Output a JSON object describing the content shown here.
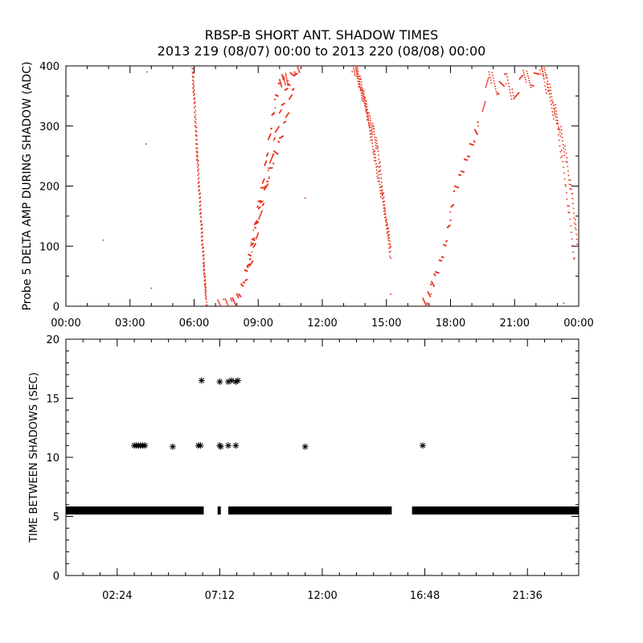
{
  "chart_data": [
    {
      "type": "scatter",
      "title": "RBSP-B SHORT ANT. SHADOW TIMES",
      "subtitle": "2013 219 (08/07) 00:00 to 2013 220 (08/08) 00:00",
      "xlabel": "",
      "ylabel": "Probe 5 DELTA AMP DURING SHADOW (ADC)",
      "xlim": [
        "00:00",
        "24:00"
      ],
      "ylim": [
        0,
        400
      ],
      "x_tick_labels": [
        "00:00",
        "03:00",
        "06:00",
        "09:00",
        "12:00",
        "15:00",
        "18:00",
        "21:00",
        "00:00"
      ],
      "y_tick_labels": [
        "0",
        "100",
        "200",
        "300",
        "400"
      ],
      "grid": false,
      "marker_color": "#e8301a",
      "traces": [
        {
          "x": [
            5.9,
            6.0,
            6.1,
            6.2,
            6.3,
            6.4,
            6.5,
            6.6
          ],
          "y": [
            400,
            340,
            270,
            210,
            150,
            90,
            35,
            2
          ]
        },
        {
          "x": [
            5.95,
            6.05,
            6.15,
            6.25,
            6.35,
            6.45,
            6.55
          ],
          "y": [
            395,
            330,
            265,
            200,
            140,
            80,
            25
          ]
        },
        {
          "x": [
            7.0,
            7.4,
            7.8,
            8.1,
            8.3,
            8.5,
            8.7,
            8.9,
            9.1,
            9.4,
            9.7,
            10.0,
            10.3,
            10.6,
            10.85
          ],
          "y": [
            0,
            2,
            4,
            15,
            40,
            70,
            100,
            130,
            170,
            210,
            245,
            270,
            310,
            360,
            400
          ]
        },
        {
          "x": [
            8.4,
            8.6,
            8.8,
            9.0,
            9.2,
            9.4,
            9.6,
            9.8,
            10.0,
            10.2,
            10.4
          ],
          "y": [
            40,
            80,
            120,
            165,
            200,
            250,
            300,
            340,
            370,
            380,
            375
          ]
        },
        {
          "x": [
            8.6,
            8.9,
            9.2,
            9.5,
            9.8,
            10.1,
            10.4,
            10.7,
            11.0
          ],
          "y": [
            60,
            110,
            170,
            220,
            280,
            330,
            370,
            395,
            400
          ]
        },
        {
          "x": [
            13.4,
            13.6,
            13.8,
            14.0,
            14.2,
            14.4,
            14.6,
            14.8,
            15.0,
            15.2
          ],
          "y": [
            400,
            390,
            360,
            340,
            310,
            290,
            260,
            200,
            140,
            80
          ]
        },
        {
          "x": [
            13.6,
            13.8,
            14.0,
            14.2,
            14.4,
            14.6,
            14.8,
            15.0,
            15.2
          ],
          "y": [
            395,
            370,
            340,
            300,
            260,
            220,
            180,
            140,
            100
          ]
        },
        {
          "x": [
            16.6,
            16.9,
            17.1,
            17.3,
            17.6,
            17.8,
            18.0,
            18.2,
            18.5,
            18.8,
            19.1,
            19.3
          ],
          "y": [
            0,
            10,
            30,
            50,
            80,
            110,
            150,
            190,
            220,
            250,
            280,
            300
          ]
        },
        {
          "x": [
            19.5,
            19.8,
            20.2,
            20.6,
            21.0,
            21.4,
            21.8,
            22.2,
            22.6,
            23.0,
            23.4,
            23.8
          ],
          "y": [
            320,
            390,
            360,
            380,
            340,
            390,
            370,
            400,
            350,
            300,
            200,
            80
          ]
        },
        {
          "x": [
            22.2,
            22.5,
            22.8,
            23.1,
            23.4,
            23.7,
            23.95
          ],
          "y": [
            400,
            380,
            340,
            300,
            250,
            180,
            100
          ]
        }
      ],
      "isolated_points": [
        {
          "x": 1.75,
          "y": 110
        },
        {
          "x": 3.8,
          "y": 390
        },
        {
          "x": 3.75,
          "y": 270
        },
        {
          "x": 4.0,
          "y": 30
        },
        {
          "x": 11.2,
          "y": 180
        },
        {
          "x": 15.2,
          "y": 20
        },
        {
          "x": 23.3,
          "y": 5
        }
      ]
    },
    {
      "type": "scatter",
      "title": "",
      "xlabel": "",
      "ylabel": "TIME BETWEEN SHADOWS (SEC)",
      "xlim": [
        "00:00",
        "24:00"
      ],
      "ylim": [
        0,
        20
      ],
      "x_tick_labels": [
        "02:24",
        "07:12",
        "12:00",
        "16:48",
        "21:36"
      ],
      "y_tick_labels": [
        "0",
        "5",
        "10",
        "15",
        "20"
      ],
      "grid": false,
      "marker": "asterisk",
      "marker_color": "#000000",
      "baseline": {
        "y": 5.5,
        "segments": [
          [
            0.0,
            6.45
          ],
          [
            7.1,
            7.25
          ],
          [
            7.6,
            15.25
          ],
          [
            16.2,
            24.0
          ]
        ]
      },
      "points": [
        {
          "x": 3.2,
          "y": 11.0
        },
        {
          "x": 3.3,
          "y": 11.0
        },
        {
          "x": 3.4,
          "y": 11.0
        },
        {
          "x": 3.5,
          "y": 11.0
        },
        {
          "x": 3.6,
          "y": 11.0
        },
        {
          "x": 3.7,
          "y": 11.0
        },
        {
          "x": 5.0,
          "y": 10.9
        },
        {
          "x": 6.2,
          "y": 11.0
        },
        {
          "x": 6.3,
          "y": 11.0
        },
        {
          "x": 6.35,
          "y": 16.5
        },
        {
          "x": 7.2,
          "y": 16.4
        },
        {
          "x": 7.6,
          "y": 16.4
        },
        {
          "x": 7.75,
          "y": 16.5
        },
        {
          "x": 7.95,
          "y": 16.4
        },
        {
          "x": 8.05,
          "y": 16.5
        },
        {
          "x": 7.2,
          "y": 11.0
        },
        {
          "x": 7.25,
          "y": 10.9
        },
        {
          "x": 7.6,
          "y": 11.0
        },
        {
          "x": 7.95,
          "y": 11.0
        },
        {
          "x": 11.2,
          "y": 10.9
        },
        {
          "x": 16.7,
          "y": 11.0
        }
      ]
    }
  ]
}
